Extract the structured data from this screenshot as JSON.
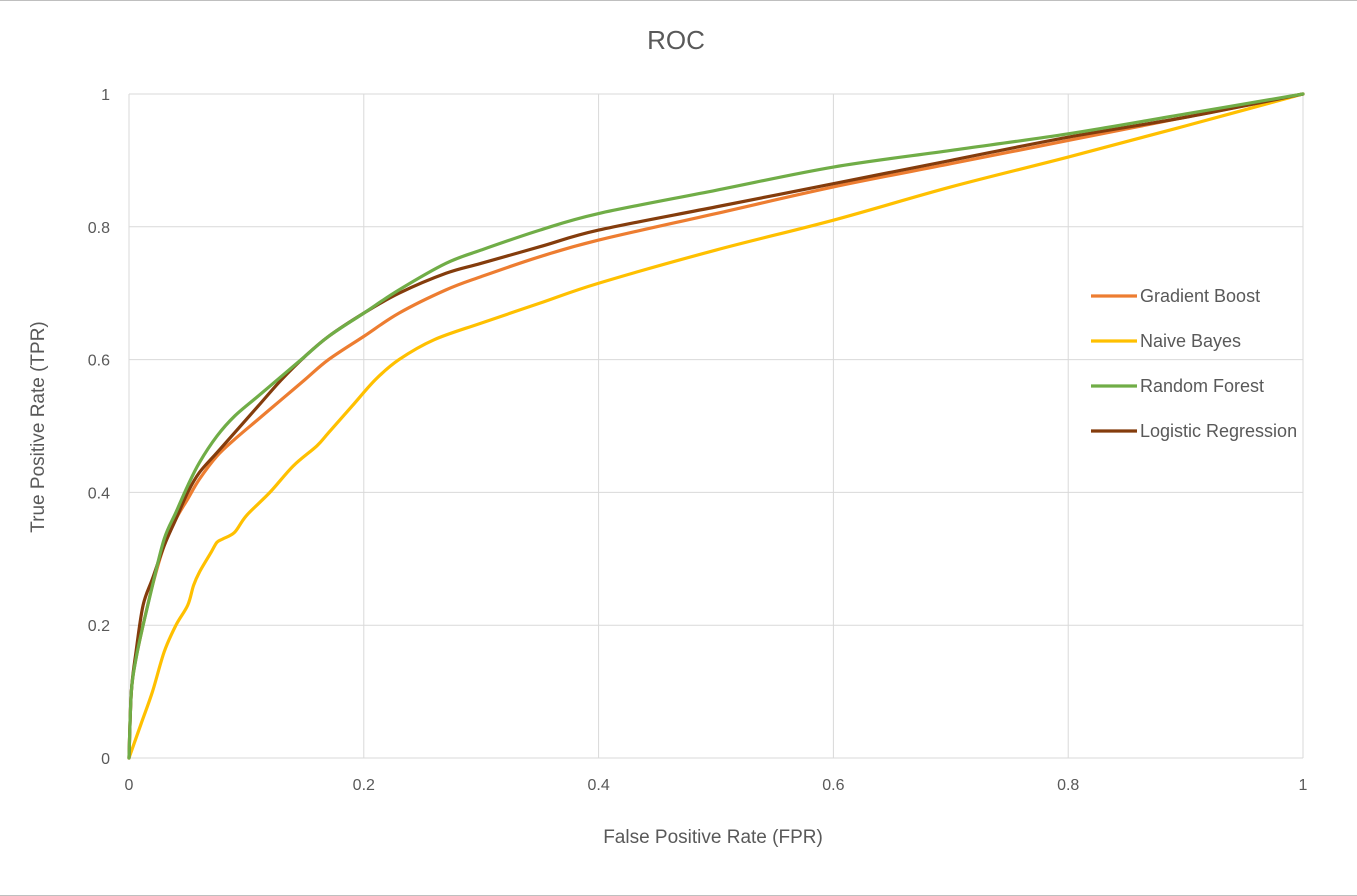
{
  "chart_data": {
    "type": "line",
    "title": "ROC",
    "xlabel": "False Positive Rate (FPR)",
    "ylabel": "True Positive Rate (TPR)",
    "xlim": [
      0,
      1
    ],
    "ylim": [
      0,
      1
    ],
    "x_ticks": [
      "0",
      "0.2",
      "0.4",
      "0.6",
      "0.8",
      "1"
    ],
    "y_ticks": [
      "0",
      "0.2",
      "0.4",
      "0.6",
      "0.8",
      "1"
    ],
    "grid": true,
    "legend_position": "right",
    "series": [
      {
        "name": "Gradient Boost",
        "color": "#ED7D31",
        "points": [
          [
            0,
            0
          ],
          [
            0.002,
            0.1
          ],
          [
            0.006,
            0.15
          ],
          [
            0.012,
            0.2
          ],
          [
            0.02,
            0.26
          ],
          [
            0.03,
            0.32
          ],
          [
            0.04,
            0.36
          ],
          [
            0.05,
            0.39
          ],
          [
            0.06,
            0.42
          ],
          [
            0.075,
            0.455
          ],
          [
            0.09,
            0.48
          ],
          [
            0.11,
            0.51
          ],
          [
            0.13,
            0.54
          ],
          [
            0.15,
            0.57
          ],
          [
            0.17,
            0.6
          ],
          [
            0.2,
            0.635
          ],
          [
            0.23,
            0.67
          ],
          [
            0.27,
            0.705
          ],
          [
            0.3,
            0.725
          ],
          [
            0.35,
            0.755
          ],
          [
            0.4,
            0.78
          ],
          [
            0.5,
            0.82
          ],
          [
            0.6,
            0.86
          ],
          [
            0.7,
            0.895
          ],
          [
            0.8,
            0.93
          ],
          [
            0.9,
            0.965
          ],
          [
            1,
            1
          ]
        ]
      },
      {
        "name": "Naive Bayes",
        "color": "#FFC000",
        "points": [
          [
            0,
            0
          ],
          [
            0.01,
            0.05
          ],
          [
            0.02,
            0.1
          ],
          [
            0.03,
            0.16
          ],
          [
            0.04,
            0.2
          ],
          [
            0.05,
            0.23
          ],
          [
            0.055,
            0.26
          ],
          [
            0.06,
            0.28
          ],
          [
            0.07,
            0.31
          ],
          [
            0.075,
            0.325
          ],
          [
            0.08,
            0.33
          ],
          [
            0.09,
            0.34
          ],
          [
            0.1,
            0.365
          ],
          [
            0.12,
            0.4
          ],
          [
            0.14,
            0.44
          ],
          [
            0.16,
            0.47
          ],
          [
            0.17,
            0.49
          ],
          [
            0.19,
            0.53
          ],
          [
            0.21,
            0.57
          ],
          [
            0.23,
            0.6
          ],
          [
            0.26,
            0.63
          ],
          [
            0.3,
            0.655
          ],
          [
            0.35,
            0.685
          ],
          [
            0.4,
            0.715
          ],
          [
            0.5,
            0.765
          ],
          [
            0.6,
            0.81
          ],
          [
            0.7,
            0.86
          ],
          [
            0.8,
            0.905
          ],
          [
            0.9,
            0.952
          ],
          [
            1,
            1
          ]
        ]
      },
      {
        "name": "Random Forest",
        "color": "#70AD47",
        "points": [
          [
            0,
            0
          ],
          [
            0.002,
            0.1
          ],
          [
            0.006,
            0.15
          ],
          [
            0.012,
            0.2
          ],
          [
            0.02,
            0.26
          ],
          [
            0.03,
            0.33
          ],
          [
            0.04,
            0.37
          ],
          [
            0.05,
            0.41
          ],
          [
            0.06,
            0.445
          ],
          [
            0.075,
            0.485
          ],
          [
            0.09,
            0.515
          ],
          [
            0.11,
            0.545
          ],
          [
            0.13,
            0.575
          ],
          [
            0.15,
            0.605
          ],
          [
            0.17,
            0.635
          ],
          [
            0.2,
            0.67
          ],
          [
            0.23,
            0.705
          ],
          [
            0.27,
            0.745
          ],
          [
            0.3,
            0.765
          ],
          [
            0.35,
            0.795
          ],
          [
            0.4,
            0.82
          ],
          [
            0.5,
            0.855
          ],
          [
            0.6,
            0.89
          ],
          [
            0.7,
            0.915
          ],
          [
            0.8,
            0.94
          ],
          [
            0.9,
            0.97
          ],
          [
            1,
            1
          ]
        ]
      },
      {
        "name": "Logistic Regression",
        "color": "#843C0C",
        "points": [
          [
            0,
            0
          ],
          [
            0.002,
            0.1
          ],
          [
            0.006,
            0.16
          ],
          [
            0.012,
            0.23
          ],
          [
            0.02,
            0.27
          ],
          [
            0.03,
            0.32
          ],
          [
            0.04,
            0.36
          ],
          [
            0.05,
            0.4
          ],
          [
            0.06,
            0.43
          ],
          [
            0.075,
            0.46
          ],
          [
            0.09,
            0.49
          ],
          [
            0.11,
            0.53
          ],
          [
            0.13,
            0.57
          ],
          [
            0.15,
            0.605
          ],
          [
            0.17,
            0.635
          ],
          [
            0.2,
            0.67
          ],
          [
            0.23,
            0.7
          ],
          [
            0.27,
            0.73
          ],
          [
            0.3,
            0.745
          ],
          [
            0.35,
            0.77
          ],
          [
            0.4,
            0.795
          ],
          [
            0.5,
            0.83
          ],
          [
            0.6,
            0.865
          ],
          [
            0.7,
            0.9
          ],
          [
            0.8,
            0.935
          ],
          [
            0.9,
            0.965
          ],
          [
            1,
            1
          ]
        ]
      }
    ]
  }
}
